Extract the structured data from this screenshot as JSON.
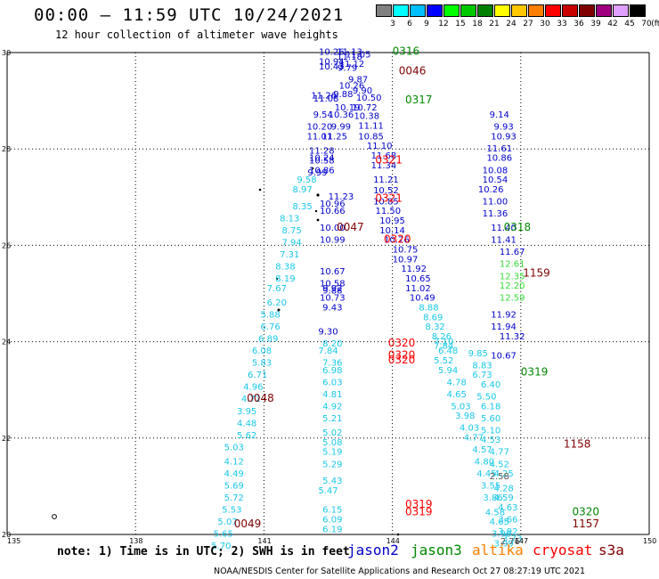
{
  "title": "00:00 – 11:59 UTC 10/24/2021",
  "subtitle": "12 hour collection of altimeter wave heights",
  "color_scale": {
    "unit": "(ft)",
    "steps": [
      {
        "label": "3",
        "color": "#808080"
      },
      {
        "label": "6",
        "color": "#00ffff"
      },
      {
        "label": "9",
        "color": "#00bfff"
      },
      {
        "label": "12",
        "color": "#0000ff"
      },
      {
        "label": "15",
        "color": "#00ff00"
      },
      {
        "label": "18",
        "color": "#00c800"
      },
      {
        "label": "21",
        "color": "#008000"
      },
      {
        "label": "24",
        "color": "#ffff00"
      },
      {
        "label": "27",
        "color": "#ffc800"
      },
      {
        "label": "30",
        "color": "#ff8000"
      },
      {
        "label": "33",
        "color": "#ff0000"
      },
      {
        "label": "36",
        "color": "#c80000"
      },
      {
        "label": "39",
        "color": "#800000"
      },
      {
        "label": "42",
        "color": "#a00080"
      },
      {
        "label": "45",
        "color": "#e0a0ff"
      },
      {
        "label": "70",
        "color": "#000000"
      }
    ]
  },
  "axes": {
    "lat_labels": [
      "30",
      "28",
      "26",
      "24",
      "22",
      "20"
    ],
    "lon_labels": [
      "135",
      "138",
      "141",
      "144",
      "147",
      "150"
    ]
  },
  "swh_colors": {
    "gray": "#555555",
    "cyan": "#18c8e8",
    "blue": "#0000cc",
    "lgreen": "#33dd33",
    "dgreen": "#008800",
    "red": "#ff0000",
    "dred": "#800000"
  },
  "pass_times": [
    {
      "text": "0316",
      "color": "#008800",
      "lon": 144.0,
      "lat": 29.95
    },
    {
      "text": "0046",
      "color": "#800000",
      "lon": 144.15,
      "lat": 29.55
    },
    {
      "text": "0317",
      "color": "#008800",
      "lon": 144.3,
      "lat": 28.95
    },
    {
      "text": "0321",
      "color": "#ff0000",
      "lon": 143.6,
      "lat": 27.7
    },
    {
      "text": "0321",
      "color": "#ff0000",
      "lon": 143.6,
      "lat": 26.9
    },
    {
      "text": "0047",
      "color": "#800000",
      "lon": 142.7,
      "lat": 26.3
    },
    {
      "text": "0320",
      "color": "#ff0000",
      "lon": 143.8,
      "lat": 26.05
    },
    {
      "text": "0318",
      "color": "#008800",
      "lon": 146.6,
      "lat": 26.3
    },
    {
      "text": "1159",
      "color": "#800000",
      "lon": 147.05,
      "lat": 25.35
    },
    {
      "text": "0320",
      "color": "#ff0000",
      "lon": 143.9,
      "lat": 23.9
    },
    {
      "text": "0320",
      "color": "#ff0000",
      "lon": 143.9,
      "lat": 23.65
    },
    {
      "text": "0320",
      "color": "#ff0000",
      "lon": 143.9,
      "lat": 23.55
    },
    {
      "text": "0319",
      "color": "#008800",
      "lon": 147.0,
      "lat": 23.3
    },
    {
      "text": "0048",
      "color": "#800000",
      "lon": 140.6,
      "lat": 22.75
    },
    {
      "text": "1158",
      "color": "#800000",
      "lon": 148.0,
      "lat": 21.8
    },
    {
      "text": "0319",
      "color": "#ff0000",
      "lon": 144.3,
      "lat": 20.55
    },
    {
      "text": "0319",
      "color": "#ff0000",
      "lon": 144.3,
      "lat": 20.4
    },
    {
      "text": "0320",
      "color": "#008800",
      "lon": 148.2,
      "lat": 20.4
    },
    {
      "text": "1157",
      "color": "#800000",
      "lon": 148.2,
      "lat": 20.15
    },
    {
      "text": "0049",
      "color": "#800000",
      "lon": 140.3,
      "lat": 20.15
    }
  ],
  "tracks": {
    "jason2_north": {
      "color": "blue",
      "points": [
        [
          142.58,
          29.95,
          "10.26"
        ],
        [
          143.0,
          29.95,
          "11.13"
        ],
        [
          143.2,
          29.9,
          "11.05"
        ],
        [
          143.0,
          29.85,
          "11.18"
        ],
        [
          142.58,
          29.75,
          "10.94"
        ],
        [
          143.05,
          29.7,
          "11.12"
        ],
        [
          142.58,
          29.65,
          "10.43"
        ],
        [
          142.95,
          29.62,
          "9.79"
        ],
        [
          143.2,
          29.38,
          "9.87"
        ],
        [
          143.05,
          29.25,
          "10.26"
        ],
        [
          143.3,
          29.15,
          "9.90"
        ],
        [
          142.4,
          29.05,
          "11.26"
        ],
        [
          142.85,
          29.08,
          "9.88"
        ],
        [
          142.45,
          28.98,
          "11.08"
        ],
        [
          143.45,
          29.0,
          "10.50"
        ],
        [
          142.95,
          28.8,
          "10.19"
        ],
        [
          143.35,
          28.8,
          "10.72"
        ],
        [
          142.38,
          28.65,
          "9.54"
        ],
        [
          142.8,
          28.65,
          "10.36"
        ],
        [
          143.4,
          28.62,
          "10.38"
        ],
        [
          142.3,
          28.4,
          "10.20"
        ],
        [
          142.8,
          28.4,
          "9.99"
        ],
        [
          143.5,
          28.42,
          "11.11"
        ],
        [
          142.3,
          28.2,
          "11.01"
        ],
        [
          142.65,
          28.2,
          "11.25"
        ],
        [
          143.5,
          28.2,
          "10.85"
        ],
        [
          143.7,
          28.0,
          "11.10"
        ],
        [
          142.35,
          27.9,
          "11.28"
        ],
        [
          143.8,
          27.8,
          "11.68"
        ],
        [
          142.35,
          27.75,
          "10.24"
        ],
        [
          142.35,
          27.7,
          "10.58"
        ],
        [
          143.8,
          27.6,
          "11.34"
        ],
        [
          142.35,
          27.5,
          "10.86"
        ],
        [
          142.25,
          27.45,
          "9.99"
        ],
        [
          143.85,
          27.3,
          "11.21"
        ],
        [
          142.8,
          26.95,
          "11.23"
        ],
        [
          143.85,
          27.08,
          "10.52"
        ],
        [
          142.6,
          26.8,
          "10.96"
        ],
        [
          143.85,
          26.85,
          "10.85"
        ],
        [
          142.6,
          26.65,
          "10.66"
        ],
        [
          143.9,
          26.65,
          "11.50"
        ],
        [
          144.0,
          26.45,
          "10.95"
        ],
        [
          144.0,
          26.25,
          "10.14"
        ],
        [
          142.6,
          26.3,
          "10.00"
        ],
        [
          144.1,
          26.05,
          "10.76"
        ],
        [
          142.6,
          26.05,
          "10.99"
        ],
        [
          144.3,
          25.85,
          "10.75"
        ],
        [
          144.3,
          25.65,
          "10.97"
        ],
        [
          144.5,
          25.45,
          "11.92"
        ],
        [
          142.6,
          25.4,
          "10.67"
        ],
        [
          144.6,
          25.25,
          "10.65"
        ],
        [
          142.6,
          25.15,
          "10.58"
        ],
        [
          142.6,
          25.05,
          "9.92"
        ],
        [
          142.6,
          25.0,
          "9.88"
        ],
        [
          144.6,
          25.05,
          "11.02"
        ],
        [
          142.6,
          24.85,
          "10.73"
        ],
        [
          144.7,
          24.85,
          "10.49"
        ],
        [
          142.6,
          24.65,
          "9.43"
        ],
        [
          142.5,
          24.15,
          "9.30"
        ],
        [
          146.5,
          28.65,
          "9.14"
        ],
        [
          146.6,
          28.4,
          "9.93"
        ],
        [
          146.6,
          28.2,
          "10.93"
        ],
        [
          146.5,
          27.95,
          "11.61"
        ],
        [
          146.5,
          27.75,
          "10.86"
        ],
        [
          146.4,
          27.5,
          "10.08"
        ],
        [
          146.4,
          27.3,
          "10.54"
        ],
        [
          146.3,
          27.1,
          "10.26"
        ],
        [
          146.4,
          26.85,
          "11.00"
        ],
        [
          146.4,
          26.6,
          "11.36"
        ],
        [
          146.6,
          26.3,
          "11.40"
        ],
        [
          146.6,
          26.05,
          "11.41"
        ],
        [
          146.8,
          25.8,
          "11.67"
        ],
        [
          146.6,
          24.5,
          "11.92"
        ],
        [
          146.6,
          24.25,
          "11.94"
        ],
        [
          146.8,
          24.05,
          "11.32"
        ],
        [
          146.6,
          23.65,
          "10.67"
        ]
      ]
    },
    "jason3": {
      "color": "lgreen",
      "points": [
        [
          146.8,
          25.55,
          "12.61"
        ],
        [
          146.8,
          25.3,
          "12.35"
        ],
        [
          146.8,
          25.1,
          "12.20"
        ],
        [
          146.8,
          24.85,
          "12.59"
        ]
      ]
    },
    "cyan_west": {
      "color": "cyan",
      "points": [
        [
          142.0,
          27.3,
          "9.58"
        ],
        [
          141.9,
          27.1,
          "8.97"
        ],
        [
          141.9,
          26.75,
          "8.35"
        ],
        [
          141.6,
          26.5,
          "8.13"
        ],
        [
          141.65,
          26.25,
          "8.75"
        ],
        [
          141.65,
          26.0,
          "7.94"
        ],
        [
          141.6,
          25.75,
          "7.31"
        ],
        [
          141.5,
          25.5,
          "8.38"
        ],
        [
          141.5,
          25.25,
          "8.19"
        ],
        [
          141.3,
          25.05,
          "7.67"
        ],
        [
          141.3,
          24.75,
          "6.20"
        ],
        [
          141.15,
          24.5,
          "5.88"
        ],
        [
          141.15,
          24.25,
          "6.76"
        ],
        [
          141.1,
          24.0,
          "6.89"
        ],
        [
          140.95,
          23.75,
          "6.08"
        ],
        [
          140.95,
          23.5,
          "5.83"
        ],
        [
          140.85,
          23.25,
          "6.71"
        ],
        [
          140.75,
          23.0,
          "4.96"
        ],
        [
          140.7,
          22.75,
          "4.72"
        ],
        [
          140.6,
          22.5,
          "3.95"
        ],
        [
          140.6,
          22.25,
          "4.48"
        ],
        [
          140.6,
          22.0,
          "5.62"
        ],
        [
          140.3,
          21.75,
          "5.03"
        ],
        [
          140.3,
          21.45,
          "4.12"
        ],
        [
          140.3,
          21.2,
          "4.49"
        ],
        [
          140.3,
          20.95,
          "5.69"
        ],
        [
          140.3,
          20.7,
          "5.72"
        ],
        [
          140.25,
          20.45,
          "5.53"
        ],
        [
          140.15,
          20.2,
          "5.07"
        ],
        [
          140.05,
          19.95,
          "5.65"
        ],
        [
          140.0,
          19.7,
          "5.70"
        ],
        [
          142.6,
          23.9,
          "8.20"
        ],
        [
          142.5,
          23.75,
          "7.84"
        ],
        [
          142.6,
          23.5,
          "7.36"
        ],
        [
          142.6,
          23.35,
          "6.98"
        ],
        [
          142.6,
          23.1,
          "6.03"
        ],
        [
          142.6,
          22.85,
          "4.81"
        ],
        [
          142.6,
          22.6,
          "4.92"
        ],
        [
          142.6,
          22.35,
          "5.21"
        ],
        [
          142.6,
          22.05,
          "5.02"
        ],
        [
          142.6,
          21.85,
          "5.08"
        ],
        [
          142.6,
          21.65,
          "5.19"
        ],
        [
          142.6,
          21.4,
          "5.29"
        ],
        [
          142.6,
          21.05,
          "5.43"
        ],
        [
          142.5,
          20.85,
          "5.47"
        ],
        [
          142.6,
          20.45,
          "6.15"
        ],
        [
          142.6,
          20.25,
          "6.09"
        ],
        [
          142.6,
          20.05,
          "6.19"
        ],
        [
          145.2,
          23.95,
          "7.10"
        ],
        [
          145.3,
          23.75,
          "6.48"
        ],
        [
          145.2,
          23.55,
          "5.52"
        ],
        [
          145.3,
          23.35,
          "5.94"
        ],
        [
          145.5,
          23.1,
          "4.78"
        ],
        [
          145.5,
          22.85,
          "4.65"
        ],
        [
          145.6,
          22.6,
          "5.03"
        ],
        [
          145.7,
          22.4,
          "3.98"
        ],
        [
          145.8,
          22.15,
          "4.03"
        ],
        [
          145.9,
          21.95,
          "4.77"
        ],
        [
          146.1,
          21.7,
          "4.57"
        ],
        [
          146.15,
          21.45,
          "4.80"
        ],
        [
          146.2,
          21.2,
          "4.45"
        ],
        [
          146.3,
          20.95,
          "3.55"
        ],
        [
          146.35,
          20.7,
          "3.86"
        ],
        [
          146.4,
          20.4,
          "4.58"
        ],
        [
          146.5,
          20.2,
          "4.65"
        ],
        [
          146.55,
          19.95,
          "3.96"
        ],
        [
          146.6,
          19.75,
          "3.99"
        ]
      ]
    },
    "cyan_east": {
      "color": "cyan",
      "points": [
        [
          146.0,
          23.7,
          "9.85"
        ],
        [
          146.1,
          23.45,
          "8.83"
        ],
        [
          146.1,
          23.25,
          "6.73"
        ],
        [
          146.3,
          23.05,
          "6.40"
        ],
        [
          146.2,
          22.8,
          "5.50"
        ],
        [
          146.3,
          22.6,
          "6.18"
        ],
        [
          146.3,
          22.35,
          "5.60"
        ],
        [
          146.3,
          22.1,
          "5.10"
        ],
        [
          146.3,
          21.9,
          "4.53"
        ],
        [
          146.5,
          21.65,
          "4.77"
        ],
        [
          146.5,
          21.4,
          "4.52"
        ],
        [
          146.6,
          21.2,
          "4.25"
        ],
        [
          146.6,
          20.9,
          "4.28"
        ],
        [
          146.6,
          20.7,
          "4.59"
        ],
        [
          146.7,
          20.5,
          "4.63"
        ],
        [
          146.7,
          20.25,
          "3.66"
        ],
        [
          146.7,
          20.0,
          "3.92"
        ],
        [
          146.8,
          19.85,
          "3.73"
        ]
      ]
    },
    "cyan_mid": {
      "color": "cyan",
      "points": [
        [
          144.85,
          24.65,
          "8.88"
        ],
        [
          144.95,
          24.45,
          "8.69"
        ],
        [
          145.0,
          24.25,
          "8.32"
        ],
        [
          145.15,
          24.05,
          "8.26"
        ],
        [
          145.2,
          23.85,
          "7.84"
        ]
      ]
    },
    "gray": {
      "color": "gray",
      "points": [
        [
          146.5,
          21.15,
          "2.58"
        ],
        [
          146.75,
          19.8,
          "2.76"
        ]
      ]
    }
  },
  "legend": {
    "note": "note: 1) Time is in UTC; 2) SWH is in feet",
    "items": [
      {
        "label": "jason2",
        "color": "#0000cc"
      },
      {
        "label": "jason3",
        "color": "#008800"
      },
      {
        "label": "altika",
        "color": "#ff8000"
      },
      {
        "label": "cryosat",
        "color": "#ff0000"
      },
      {
        "label": "s3a",
        "color": "#800000"
      }
    ]
  },
  "footer": "NOAA/NESDIS Center for Satellite Applications and Research   Oct 27 08:27:19 UTC 2021"
}
